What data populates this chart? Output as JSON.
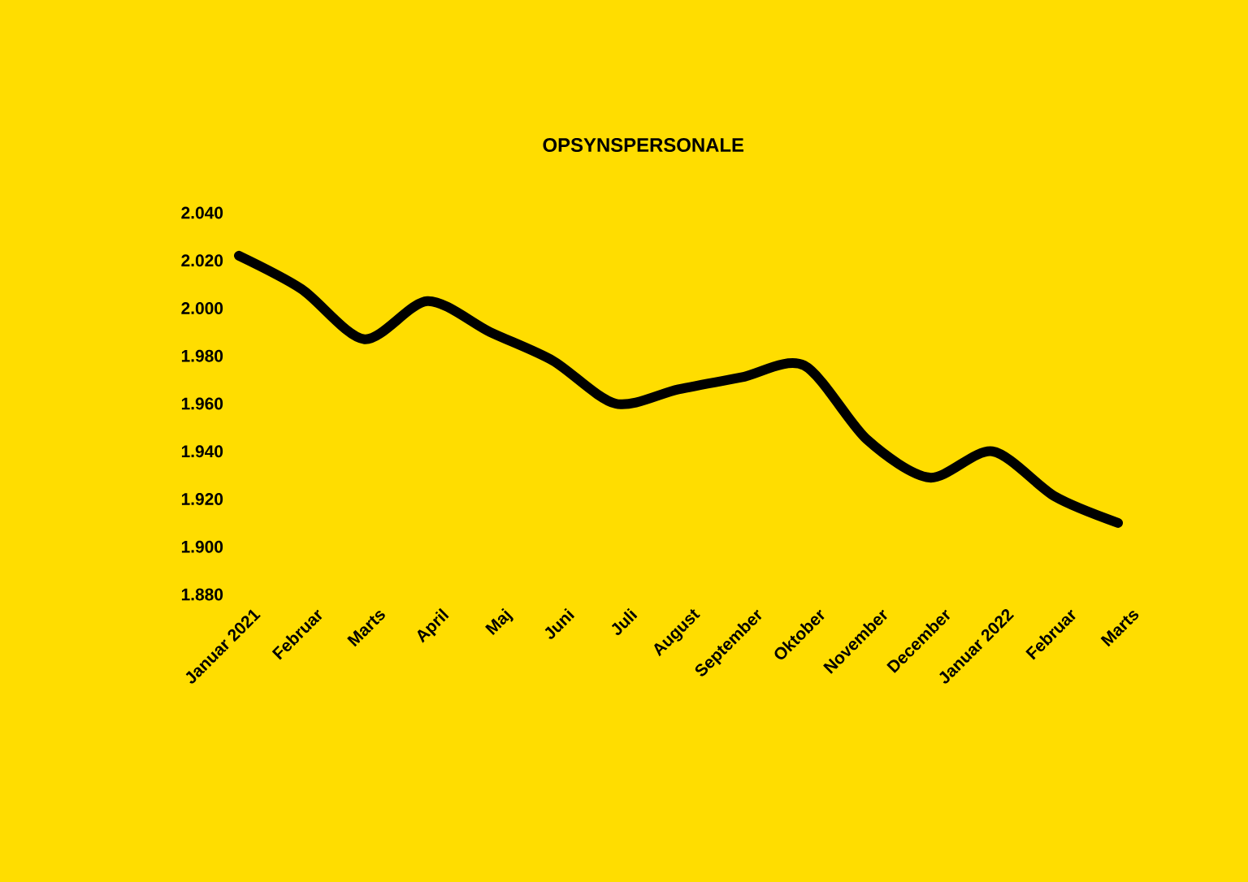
{
  "chart_data": {
    "type": "line",
    "title": "OPSYNSPERSONALE",
    "categories": [
      "Januar 2021",
      "Februar",
      "Marts",
      "April",
      "Maj",
      "Juni",
      "Juli",
      "August",
      "September",
      "Oktober",
      "November",
      "December",
      "Januar 2022",
      "Februar",
      "Marts"
    ],
    "series": [
      {
        "color": "#000000",
        "values": [
          2022,
          2008,
          1987,
          2003,
          1990,
          1978,
          1960,
          1966,
          1971,
          1976,
          1945,
          1929,
          1940,
          1921,
          1910
        ]
      }
    ],
    "ylim": [
      1880,
      2040
    ],
    "yticks": [
      {
        "value": 1880,
        "label": "1.880"
      },
      {
        "value": 1900,
        "label": "1.900"
      },
      {
        "value": 1920,
        "label": "1.920"
      },
      {
        "value": 1940,
        "label": "1.940"
      },
      {
        "value": 1960,
        "label": "1.960"
      },
      {
        "value": 1980,
        "label": "1.980"
      },
      {
        "value": 2000,
        "label": "2.000"
      },
      {
        "value": 2020,
        "label": "2.020"
      },
      {
        "value": 2040,
        "label": "2.040"
      }
    ],
    "grid": false
  }
}
